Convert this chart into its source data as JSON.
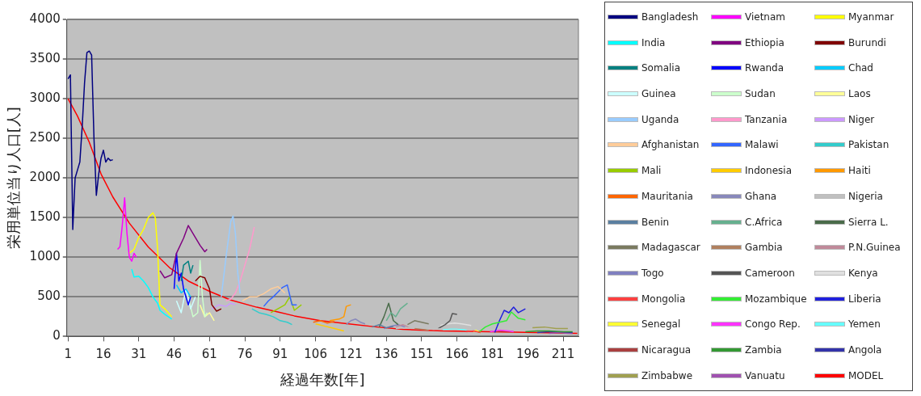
{
  "chart_data": {
    "type": "line",
    "xlabel": "経過年数[年]",
    "ylabel": "栄用単位当り人口[人]",
    "xlim": [
      0.5,
      217.5
    ],
    "xticks": [
      1,
      16,
      31,
      46,
      61,
      76,
      91,
      106,
      121,
      136,
      151,
      166,
      181,
      196,
      211
    ],
    "ylim": [
      0,
      4000
    ],
    "yticks": [
      0,
      500,
      1000,
      1500,
      2000,
      2500,
      3000,
      3500,
      4000
    ],
    "grid": "y",
    "legend": "right",
    "marker": "none",
    "line_style": "solid",
    "series": [
      {
        "name": "Bangladesh",
        "color": "#000080",
        "x": [
          1,
          2,
          3,
          4,
          5,
          6,
          7,
          8,
          9,
          10,
          11,
          12,
          13,
          14,
          15,
          16,
          17,
          18,
          19,
          20
        ],
        "values": [
          3250,
          3300,
          1350,
          2000,
          2100,
          2200,
          2650,
          3200,
          3580,
          3600,
          3550,
          2500,
          1780,
          2050,
          2250,
          2350,
          2200,
          2250,
          2220,
          2230
        ]
      },
      {
        "name": "Vietnam",
        "color": "#ff00ff",
        "x": [
          22,
          23,
          24,
          25,
          26,
          27,
          28,
          29,
          30
        ],
        "values": [
          1100,
          1130,
          1400,
          1750,
          1300,
          1000,
          950,
          1050,
          1000
        ]
      },
      {
        "name": "Myanmar",
        "color": "#ffff00",
        "x": [
          27,
          29,
          31,
          33,
          35,
          37,
          38,
          39,
          40,
          42,
          45
        ],
        "values": [
          1050,
          1100,
          1250,
          1350,
          1500,
          1560,
          1500,
          1100,
          400,
          350,
          250
        ]
      },
      {
        "name": "India",
        "color": "#00ffff",
        "x": [
          28,
          29,
          31,
          33,
          35,
          37,
          39,
          40,
          42,
          45
        ],
        "values": [
          850,
          750,
          760,
          700,
          620,
          500,
          420,
          330,
          280,
          220
        ]
      },
      {
        "name": "Ethiopia",
        "color": "#800080",
        "x": [
          40,
          42,
          45,
          47,
          50,
          52,
          55,
          57,
          59,
          60
        ],
        "values": [
          830,
          740,
          780,
          1050,
          1240,
          1400,
          1250,
          1150,
          1070,
          1100
        ]
      },
      {
        "name": "Burundi",
        "color": "#800000",
        "x": [
          55,
          57,
          59,
          61,
          62,
          64,
          66
        ],
        "values": [
          700,
          760,
          740,
          600,
          400,
          320,
          350
        ]
      },
      {
        "name": "Somalia",
        "color": "#008080",
        "x": [
          49,
          50,
          52,
          53,
          54
        ],
        "values": [
          700,
          900,
          950,
          800,
          900
        ]
      },
      {
        "name": "Rwanda",
        "color": "#0000ff",
        "x": [
          46,
          47,
          48,
          49,
          50,
          52,
          53
        ],
        "values": [
          600,
          1050,
          700,
          800,
          600,
          400,
          500
        ]
      },
      {
        "name": "Chad",
        "color": "#00ccff",
        "x": [
          47,
          49,
          51,
          53
        ],
        "values": [
          650,
          550,
          600,
          500
        ]
      },
      {
        "name": "Guinea",
        "color": "#ccffff",
        "x": [
          47,
          49,
          51,
          53,
          55
        ],
        "values": [
          450,
          300,
          600,
          350,
          500
        ]
      },
      {
        "name": "Sudan",
        "color": "#ccffcc",
        "x": [
          52,
          54,
          56,
          57,
          58,
          59,
          60
        ],
        "values": [
          500,
          250,
          300,
          960,
          500,
          250,
          300
        ]
      },
      {
        "name": "Laos",
        "color": "#ffff99",
        "x": [
          57,
          59,
          61,
          63
        ],
        "values": [
          400,
          250,
          300,
          200
        ]
      },
      {
        "name": "Uganda",
        "color": "#99ccff",
        "x": [
          66,
          68,
          70,
          71,
          72,
          73,
          74
        ],
        "values": [
          500,
          1000,
          1450,
          1520,
          1300,
          800,
          540
        ]
      },
      {
        "name": "Tanzania",
        "color": "#ff99cc",
        "x": [
          68,
          70,
          72,
          74,
          76,
          78,
          80
        ],
        "values": [
          450,
          470,
          550,
          700,
          900,
          1100,
          1380
        ]
      },
      {
        "name": "Niger",
        "color": "#cc99ff",
        "x": [
          62,
          65,
          68,
          70,
          72
        ],
        "values": [
          350,
          400,
          380,
          420,
          400
        ]
      },
      {
        "name": "Afghanistan",
        "color": "#ffcc99",
        "x": [
          75,
          78,
          81,
          84,
          87,
          90,
          93
        ],
        "values": [
          450,
          500,
          500,
          540,
          600,
          630,
          550
        ]
      },
      {
        "name": "Malawi",
        "color": "#3366ff",
        "x": [
          84,
          86,
          88,
          90,
          92,
          94,
          96,
          98
        ],
        "values": [
          380,
          450,
          500,
          560,
          620,
          650,
          400,
          400
        ]
      },
      {
        "name": "Pakistan",
        "color": "#33cccc",
        "x": [
          79,
          82,
          85,
          88,
          91,
          94,
          96
        ],
        "values": [
          350,
          300,
          280,
          250,
          200,
          180,
          150
        ]
      },
      {
        "name": "Mali",
        "color": "#99cc00",
        "x": [
          87,
          90,
          93,
          95,
          97,
          100
        ],
        "values": [
          300,
          350,
          400,
          500,
          330,
          400
        ]
      },
      {
        "name": "Indonesia",
        "color": "#ffcc00",
        "x": [
          106,
          110,
          114,
          118
        ],
        "values": [
          160,
          130,
          100,
          70
        ]
      },
      {
        "name": "Haiti",
        "color": "#ff9900",
        "x": [
          112,
          116,
          118,
          119,
          121
        ],
        "values": [
          200,
          220,
          250,
          380,
          400
        ]
      },
      {
        "name": "Mauritania",
        "color": "#ff6600",
        "x": [
          105,
          108,
          111,
          114
        ],
        "values": [
          180,
          200,
          170,
          190
        ]
      },
      {
        "name": "Ghana",
        "color": "#8888bb",
        "x": [
          119,
          121,
          123,
          125,
          127
        ],
        "values": [
          150,
          200,
          220,
          180,
          160
        ]
      },
      {
        "name": "Nigeria",
        "color": "#c0c0c0",
        "x": [
          140,
          148,
          156,
          164,
          170
        ],
        "values": [
          100,
          120,
          90,
          110,
          100
        ]
      },
      {
        "name": "Benin",
        "color": "#5b7fa0",
        "x": [
          130,
          133,
          136,
          139
        ],
        "values": [
          120,
          150,
          110,
          130
        ]
      },
      {
        "name": "C.Africa",
        "color": "#66b08f",
        "x": [
          136,
          138,
          140,
          142,
          145
        ],
        "values": [
          200,
          300,
          250,
          350,
          420
        ]
      },
      {
        "name": "Sierra L.",
        "color": "#4a6b4a",
        "x": [
          133,
          135,
          137,
          139,
          141
        ],
        "values": [
          120,
          250,
          420,
          200,
          150
        ]
      },
      {
        "name": "Madagascar",
        "color": "#7a7a60",
        "x": [
          145,
          148,
          151,
          154
        ],
        "values": [
          150,
          200,
          180,
          160
        ]
      },
      {
        "name": "Gambia",
        "color": "#b0805f",
        "x": [
          148,
          151,
          154
        ],
        "values": [
          100,
          90,
          80
        ]
      },
      {
        "name": "P.N.Guinea",
        "color": "#c08a9a",
        "x": [
          140,
          143,
          146
        ],
        "values": [
          120,
          150,
          110
        ]
      },
      {
        "name": "Togo",
        "color": "#8080c0",
        "x": [
          135,
          138,
          141,
          144
        ],
        "values": [
          100,
          130,
          150,
          120
        ]
      },
      {
        "name": "Cameroon",
        "color": "#555555",
        "x": [
          158,
          161,
          163,
          164,
          166
        ],
        "values": [
          100,
          150,
          200,
          290,
          280
        ]
      },
      {
        "name": "Kenya",
        "color": "#e0e0e0",
        "x": [
          159,
          162,
          165,
          168,
          172
        ],
        "values": [
          140,
          160,
          170,
          160,
          140
        ]
      },
      {
        "name": "Mongolia",
        "color": "#ff4040",
        "x": [
          170,
          173,
          176
        ],
        "values": [
          60,
          70,
          50
        ]
      },
      {
        "name": "Mozambique",
        "color": "#33ee33",
        "x": [
          175,
          178,
          181,
          184,
          187,
          189,
          192,
          195
        ],
        "values": [
          50,
          120,
          160,
          180,
          200,
          310,
          230,
          210
        ]
      },
      {
        "name": "Liberia",
        "color": "#2020dd",
        "x": [
          182,
          184,
          186,
          188,
          190,
          192,
          195
        ],
        "values": [
          50,
          200,
          330,
          300,
          370,
          300,
          350
        ]
      },
      {
        "name": "Senegal",
        "color": "#ffff33",
        "x": [
          173,
          174,
          176
        ],
        "values": [
          60,
          80,
          50
        ]
      },
      {
        "name": "Congo Rep.",
        "color": "#ff33ff",
        "x": [
          180,
          184,
          188,
          190
        ],
        "values": [
          60,
          80,
          70,
          60
        ]
      },
      {
        "name": "Yemen",
        "color": "#66ffff",
        "x": [
          160,
          165,
          170
        ],
        "values": [
          90,
          100,
          80
        ]
      },
      {
        "name": "Nicaragua",
        "color": "#aa4040",
        "x": [
          180,
          185,
          190
        ],
        "values": [
          60,
          70,
          60
        ]
      },
      {
        "name": "Zambia",
        "color": "#339933",
        "x": [
          195,
          200,
          205,
          210,
          215
        ],
        "values": [
          60,
          70,
          70,
          60,
          60
        ]
      },
      {
        "name": "Angola",
        "color": "#3333aa",
        "x": [
          200,
          205,
          210,
          215
        ],
        "values": [
          50,
          60,
          60,
          50
        ]
      },
      {
        "name": "Zimbabwe",
        "color": "#a0a050",
        "x": [
          198,
          203,
          208,
          213
        ],
        "values": [
          110,
          120,
          100,
          100
        ]
      },
      {
        "name": "Vanuatu",
        "color": "#a050b0",
        "x": [
          205,
          209,
          213,
          215
        ],
        "values": [
          40,
          50,
          40,
          40
        ]
      },
      {
        "name": "MODEL",
        "color": "#ff0000",
        "x": [
          1,
          5,
          10,
          15,
          20,
          27,
          35,
          44,
          52,
          61,
          70,
          81,
          90,
          97,
          108,
          120,
          132,
          143,
          160,
          180,
          200,
          217
        ],
        "values": [
          3000,
          2780,
          2450,
          2050,
          1760,
          1430,
          1130,
          870,
          700,
          570,
          460,
          370,
          310,
          260,
          200,
          160,
          120,
          90,
          70,
          60,
          50,
          40
        ]
      }
    ]
  }
}
